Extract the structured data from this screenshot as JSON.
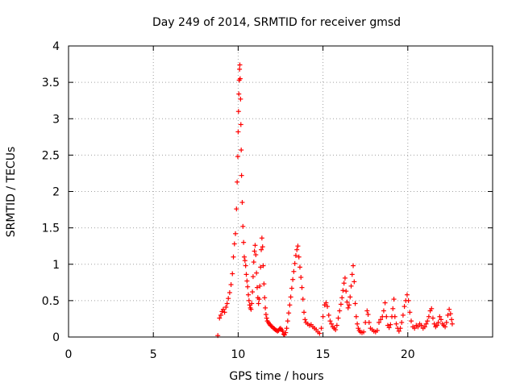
{
  "chart_data": {
    "type": "scatter",
    "title": "Day 249 of 2014, SRMTID for receiver gmsd",
    "xlabel": "GPS time / hours",
    "ylabel": "SRMTID / TECUs",
    "xlim": [
      0,
      25
    ],
    "ylim": [
      0,
      4
    ],
    "grid": true,
    "x_ticks": [
      0,
      5,
      10,
      15,
      20
    ],
    "y_ticks": [
      0,
      0.5,
      1,
      1.5,
      2,
      2.5,
      3,
      3.5,
      4
    ],
    "x_tick_labels": [
      "0",
      "5",
      "10",
      "15",
      "20"
    ],
    "y_tick_labels": [
      "0",
      "0.5",
      "1",
      "1.5",
      "2",
      "2.5",
      "3",
      "3.5",
      "4"
    ],
    "marker": "+",
    "color": "#ff0000",
    "series": [
      {
        "name": "SRMTID",
        "points": [
          [
            8.8,
            0.02
          ],
          [
            8.9,
            0.26
          ],
          [
            8.98,
            0.3
          ],
          [
            9.05,
            0.35
          ],
          [
            9.12,
            0.38
          ],
          [
            9.2,
            0.34
          ],
          [
            9.28,
            0.41
          ],
          [
            9.35,
            0.46
          ],
          [
            9.42,
            0.53
          ],
          [
            9.5,
            0.61
          ],
          [
            9.58,
            0.72
          ],
          [
            9.66,
            0.87
          ],
          [
            9.72,
            1.1
          ],
          [
            9.78,
            1.28
          ],
          [
            9.84,
            1.42
          ],
          [
            9.9,
            1.76
          ],
          [
            9.94,
            2.13
          ],
          [
            9.98,
            2.48
          ],
          [
            10.0,
            2.82
          ],
          [
            10.02,
            3.1
          ],
          [
            10.04,
            3.34
          ],
          [
            10.06,
            3.53
          ],
          [
            10.08,
            3.68
          ],
          [
            10.1,
            3.74
          ],
          [
            10.12,
            3.55
          ],
          [
            10.14,
            3.27
          ],
          [
            10.16,
            2.92
          ],
          [
            10.18,
            2.57
          ],
          [
            10.2,
            2.22
          ],
          [
            10.24,
            1.85
          ],
          [
            10.28,
            1.52
          ],
          [
            10.32,
            1.3
          ],
          [
            10.36,
            1.1
          ],
          [
            10.4,
            1.05
          ],
          [
            10.44,
            0.98
          ],
          [
            10.48,
            0.86
          ],
          [
            10.52,
            0.77
          ],
          [
            10.56,
            0.69
          ],
          [
            10.6,
            0.58
          ],
          [
            10.64,
            0.5
          ],
          [
            10.68,
            0.44
          ],
          [
            10.72,
            0.4
          ],
          [
            10.76,
            0.38
          ],
          [
            10.8,
            0.46
          ],
          [
            10.84,
            0.62
          ],
          [
            10.88,
            0.83
          ],
          [
            10.92,
            1.03
          ],
          [
            10.96,
            1.18
          ],
          [
            11.0,
            1.26
          ],
          [
            11.04,
            1.13
          ],
          [
            11.08,
            0.88
          ],
          [
            11.12,
            0.68
          ],
          [
            11.16,
            0.54
          ],
          [
            11.2,
            0.46
          ],
          [
            11.24,
            0.52
          ],
          [
            11.28,
            0.7
          ],
          [
            11.32,
            0.96
          ],
          [
            11.36,
            1.2
          ],
          [
            11.4,
            1.36
          ],
          [
            11.44,
            1.24
          ],
          [
            11.48,
            0.98
          ],
          [
            11.52,
            0.73
          ],
          [
            11.56,
            0.54
          ],
          [
            11.6,
            0.4
          ],
          [
            11.64,
            0.31
          ],
          [
            11.68,
            0.26
          ],
          [
            11.72,
            0.22
          ],
          [
            11.78,
            0.2
          ],
          [
            11.84,
            0.18
          ],
          [
            11.9,
            0.16
          ],
          [
            11.96,
            0.15
          ],
          [
            12.02,
            0.14
          ],
          [
            12.08,
            0.12
          ],
          [
            12.14,
            0.11
          ],
          [
            12.2,
            0.1
          ],
          [
            12.26,
            0.09
          ],
          [
            12.32,
            0.08
          ],
          [
            12.38,
            0.09
          ],
          [
            12.44,
            0.11
          ],
          [
            12.5,
            0.12
          ],
          [
            12.56,
            0.1
          ],
          [
            12.62,
            0.08
          ],
          [
            12.68,
            0.04
          ],
          [
            12.74,
            0.03
          ],
          [
            12.8,
            0.06
          ],
          [
            12.86,
            0.12
          ],
          [
            12.92,
            0.22
          ],
          [
            12.98,
            0.33
          ],
          [
            13.04,
            0.44
          ],
          [
            13.1,
            0.55
          ],
          [
            13.16,
            0.67
          ],
          [
            13.22,
            0.79
          ],
          [
            13.28,
            0.9
          ],
          [
            13.34,
            1.01
          ],
          [
            13.4,
            1.12
          ],
          [
            13.46,
            1.2
          ],
          [
            13.52,
            1.25
          ],
          [
            13.58,
            1.1
          ],
          [
            13.64,
            0.96
          ],
          [
            13.7,
            0.82
          ],
          [
            13.76,
            0.68
          ],
          [
            13.82,
            0.52
          ],
          [
            13.88,
            0.34
          ],
          [
            13.94,
            0.24
          ],
          [
            14.0,
            0.2
          ],
          [
            14.1,
            0.18
          ],
          [
            14.2,
            0.16
          ],
          [
            14.3,
            0.17
          ],
          [
            14.4,
            0.14
          ],
          [
            14.5,
            0.12
          ],
          [
            14.6,
            0.1
          ],
          [
            14.7,
            0.07
          ],
          [
            14.8,
            0.05
          ],
          [
            14.9,
            0.12
          ],
          [
            15.0,
            0.28
          ],
          [
            15.1,
            0.44
          ],
          [
            15.18,
            0.47
          ],
          [
            15.26,
            0.42
          ],
          [
            15.34,
            0.3
          ],
          [
            15.42,
            0.22
          ],
          [
            15.5,
            0.18
          ],
          [
            15.58,
            0.14
          ],
          [
            15.66,
            0.12
          ],
          [
            15.74,
            0.1
          ],
          [
            15.82,
            0.16
          ],
          [
            15.9,
            0.26
          ],
          [
            15.98,
            0.36
          ],
          [
            16.06,
            0.45
          ],
          [
            16.12,
            0.54
          ],
          [
            16.18,
            0.64
          ],
          [
            16.24,
            0.74
          ],
          [
            16.3,
            0.81
          ],
          [
            16.36,
            0.63
          ],
          [
            16.42,
            0.48
          ],
          [
            16.48,
            0.4
          ],
          [
            16.54,
            0.44
          ],
          [
            16.6,
            0.55
          ],
          [
            16.66,
            0.7
          ],
          [
            16.72,
            0.86
          ],
          [
            16.78,
            0.98
          ],
          [
            16.84,
            0.76
          ],
          [
            16.9,
            0.46
          ],
          [
            16.96,
            0.28
          ],
          [
            17.02,
            0.18
          ],
          [
            17.08,
            0.12
          ],
          [
            17.14,
            0.09
          ],
          [
            17.2,
            0.07
          ],
          [
            17.3,
            0.06
          ],
          [
            17.4,
            0.07
          ],
          [
            17.5,
            0.2
          ],
          [
            17.6,
            0.36
          ],
          [
            17.66,
            0.31
          ],
          [
            17.72,
            0.2
          ],
          [
            17.8,
            0.12
          ],
          [
            17.9,
            0.1
          ],
          [
            18.0,
            0.08
          ],
          [
            18.1,
            0.07
          ],
          [
            18.2,
            0.09
          ],
          [
            18.3,
            0.2
          ],
          [
            18.4,
            0.24
          ],
          [
            18.5,
            0.28
          ],
          [
            18.58,
            0.36
          ],
          [
            18.66,
            0.47
          ],
          [
            18.74,
            0.28
          ],
          [
            18.82,
            0.16
          ],
          [
            18.9,
            0.13
          ],
          [
            18.98,
            0.17
          ],
          [
            19.06,
            0.28
          ],
          [
            19.12,
            0.39
          ],
          [
            19.18,
            0.52
          ],
          [
            19.24,
            0.28
          ],
          [
            19.32,
            0.18
          ],
          [
            19.4,
            0.12
          ],
          [
            19.48,
            0.08
          ],
          [
            19.56,
            0.12
          ],
          [
            19.64,
            0.2
          ],
          [
            19.72,
            0.3
          ],
          [
            19.8,
            0.42
          ],
          [
            19.88,
            0.5
          ],
          [
            19.96,
            0.58
          ],
          [
            20.04,
            0.5
          ],
          [
            20.12,
            0.34
          ],
          [
            20.2,
            0.22
          ],
          [
            20.3,
            0.14
          ],
          [
            20.4,
            0.12
          ],
          [
            20.5,
            0.16
          ],
          [
            20.6,
            0.14
          ],
          [
            20.7,
            0.18
          ],
          [
            20.8,
            0.16
          ],
          [
            20.9,
            0.12
          ],
          [
            21.0,
            0.14
          ],
          [
            21.08,
            0.18
          ],
          [
            21.16,
            0.22
          ],
          [
            21.24,
            0.28
          ],
          [
            21.32,
            0.36
          ],
          [
            21.4,
            0.39
          ],
          [
            21.48,
            0.26
          ],
          [
            21.56,
            0.18
          ],
          [
            21.64,
            0.14
          ],
          [
            21.72,
            0.16
          ],
          [
            21.8,
            0.2
          ],
          [
            21.88,
            0.28
          ],
          [
            21.96,
            0.24
          ],
          [
            22.04,
            0.18
          ],
          [
            22.12,
            0.16
          ],
          [
            22.2,
            0.14
          ],
          [
            22.28,
            0.2
          ],
          [
            22.36,
            0.3
          ],
          [
            22.44,
            0.38
          ],
          [
            22.52,
            0.32
          ],
          [
            22.58,
            0.24
          ],
          [
            22.62,
            0.18
          ]
        ]
      }
    ]
  }
}
